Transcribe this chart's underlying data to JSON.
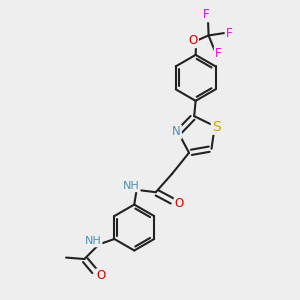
{
  "bg_color": "#eeeeee",
  "bond_color": "#222222",
  "bond_width": 1.5,
  "atom_colors": {
    "N": "#4a90b8",
    "S": "#c8a800",
    "O": "#cc0000",
    "F": "#ee00ee",
    "H": "#4a90b8"
  },
  "afs": 8.5
}
